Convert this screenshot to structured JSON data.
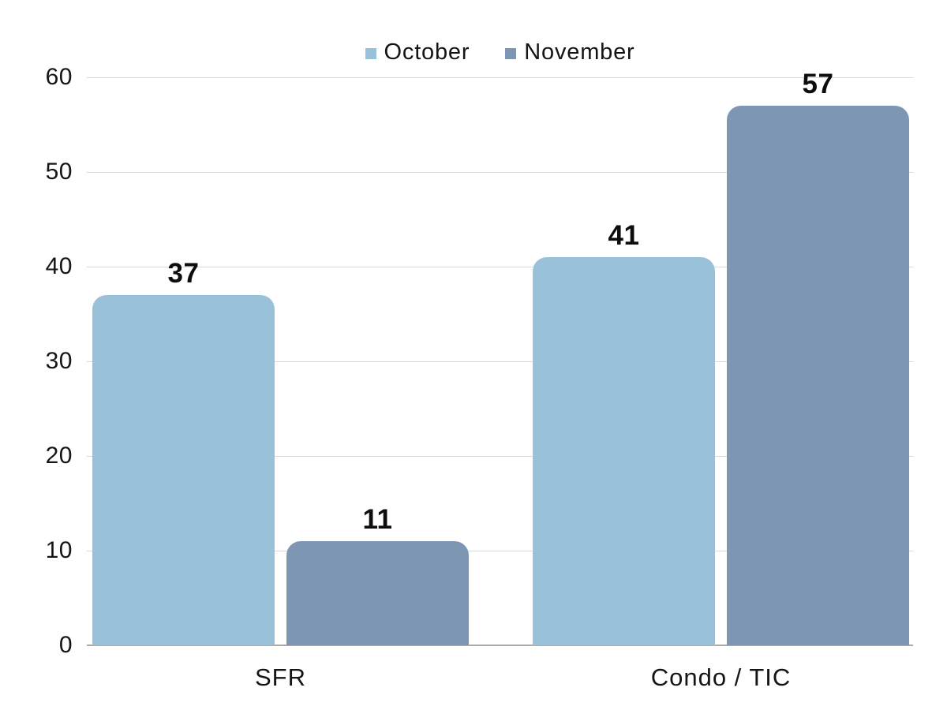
{
  "colors": {
    "background": "#FFFFFF",
    "gridline": "#D9D9D9",
    "baseline": "#ABABAB",
    "text": "#141414"
  },
  "chart_data": {
    "type": "bar",
    "title": "",
    "categories": [
      "SFR",
      "Condo / TIC"
    ],
    "series": [
      {
        "name": "October",
        "color": "#9AC1DA",
        "values": [
          37,
          41
        ]
      },
      {
        "name": "November",
        "color": "#7D96B4",
        "values": [
          11,
          57
        ]
      }
    ],
    "data_labels": [
      [
        "37",
        "41"
      ],
      [
        "11",
        "57"
      ]
    ],
    "ylabel": "",
    "xlabel": "",
    "ylim": [
      0,
      60
    ],
    "yticks": [
      0,
      10,
      20,
      30,
      40,
      50,
      60
    ],
    "ytick_labels": [
      "0",
      "10",
      "20",
      "30",
      "40",
      "50",
      "60"
    ],
    "grid": "horizontal",
    "legend_position": "top-center"
  }
}
